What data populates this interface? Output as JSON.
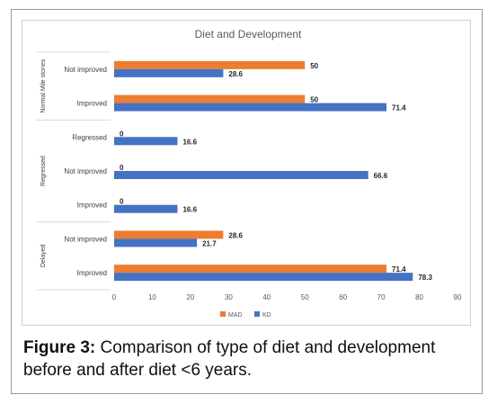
{
  "chart_data": {
    "type": "bar",
    "orientation": "horizontal",
    "title": "Diet and Development",
    "groups": [
      {
        "name": "Normal Mile stones",
        "categories": [
          "Not improved",
          "Improved"
        ]
      },
      {
        "name": "Regressed",
        "categories": [
          "Regressed",
          "Not improved",
          "Improved"
        ]
      },
      {
        "name": "Delayed",
        "categories": [
          "Not improved",
          "Improved"
        ]
      }
    ],
    "categories": [
      "Not improved",
      "Improved",
      "Regressed",
      "Not improved",
      "Improved",
      "Not improved",
      "Improved"
    ],
    "series": [
      {
        "name": "MAD",
        "color": "#ed7d31",
        "values": [
          50,
          50,
          0,
          0,
          0,
          28.6,
          71.4
        ],
        "labels": [
          "50",
          "50",
          "0",
          "0",
          "0",
          "28.6",
          "71.4"
        ]
      },
      {
        "name": "KD",
        "color": "#4472c4",
        "values": [
          28.6,
          71.4,
          16.6,
          66.6,
          16.6,
          21.7,
          78.3
        ],
        "labels": [
          "28.6",
          "71.4",
          "16.6",
          "66.6",
          "16.6",
          "21.7",
          "78.3"
        ]
      }
    ],
    "xlim": [
      0,
      90
    ],
    "xticks": [
      "0",
      "10",
      "20",
      "30",
      "40",
      "50",
      "60",
      "70",
      "80",
      "90"
    ],
    "grid": false,
    "legend_position": "bottom"
  },
  "caption": {
    "label": "Figure 3:",
    "text": " Comparison of type of diet and development before and after diet <6 years."
  }
}
